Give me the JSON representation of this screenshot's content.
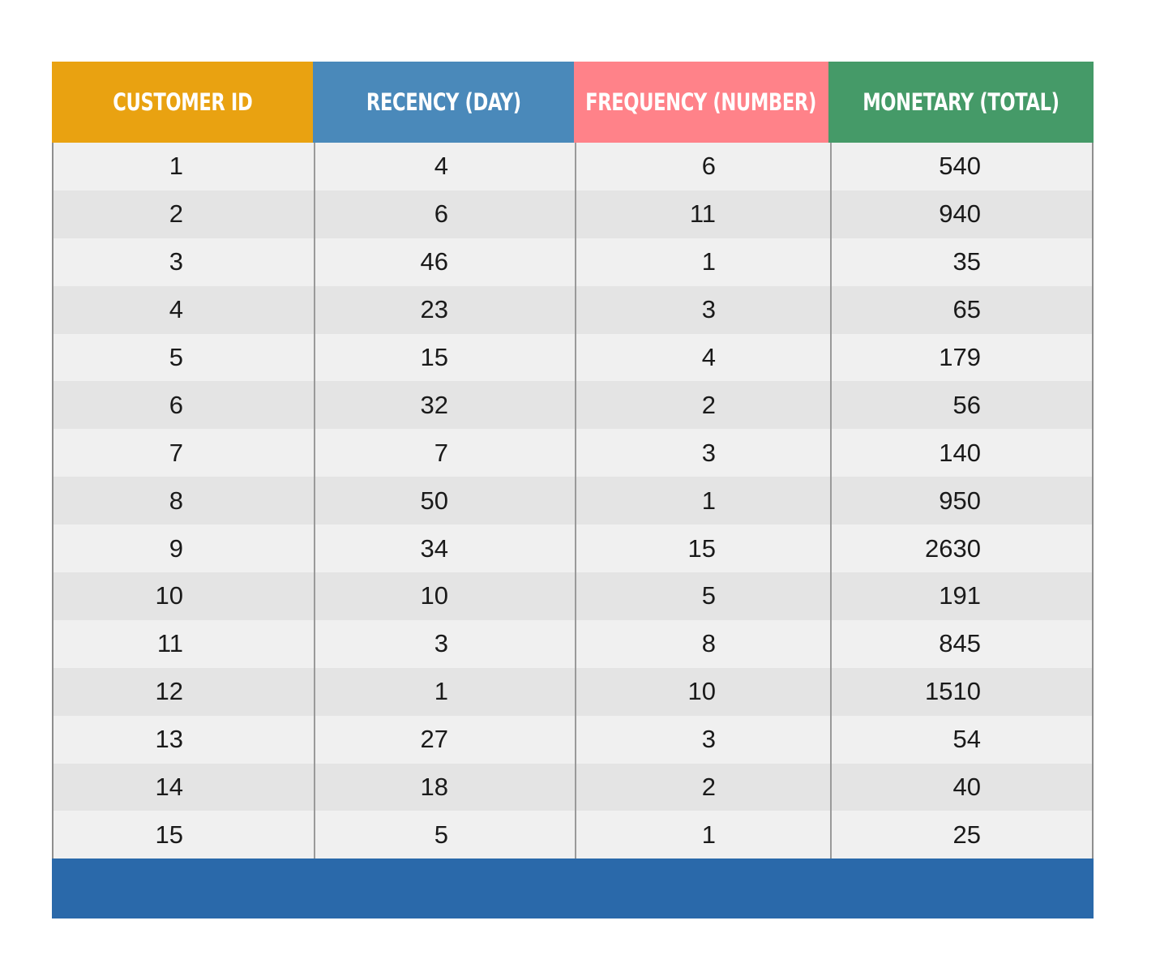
{
  "colors": {
    "customer_id": "#e9a211",
    "recency": "#4a89ba",
    "frequency": "#ff8289",
    "monetary": "#459a68",
    "footer": "#2a69aa"
  },
  "headers": [
    "CUSTOMER ID",
    "RECENCY (DAY)",
    "FREQUENCY (NUMBER)",
    "MONETARY (TOTAL)"
  ],
  "chart_data": {
    "type": "table",
    "columns": [
      "CUSTOMER ID",
      "RECENCY (DAY)",
      "FREQUENCY (NUMBER)",
      "MONETARY (TOTAL)"
    ],
    "rows": [
      [
        "1",
        "4",
        "6",
        "540"
      ],
      [
        "2",
        "6",
        "11",
        "940"
      ],
      [
        "3",
        "46",
        "1",
        "35"
      ],
      [
        "4",
        "23",
        "3",
        "65"
      ],
      [
        "5",
        "15",
        "4",
        "179"
      ],
      [
        "6",
        "32",
        "2",
        "56"
      ],
      [
        "7",
        "7",
        "3",
        "140"
      ],
      [
        "8",
        "50",
        "1",
        "950"
      ],
      [
        "9",
        "34",
        "15",
        "2630"
      ],
      [
        "10",
        "10",
        "5",
        "191"
      ],
      [
        "11",
        "3",
        "8",
        "845"
      ],
      [
        "12",
        "1",
        "10",
        "1510"
      ],
      [
        "13",
        "27",
        "3",
        "54"
      ],
      [
        "14",
        "18",
        "2",
        "40"
      ],
      [
        "15",
        "5",
        "1",
        "25"
      ]
    ]
  }
}
